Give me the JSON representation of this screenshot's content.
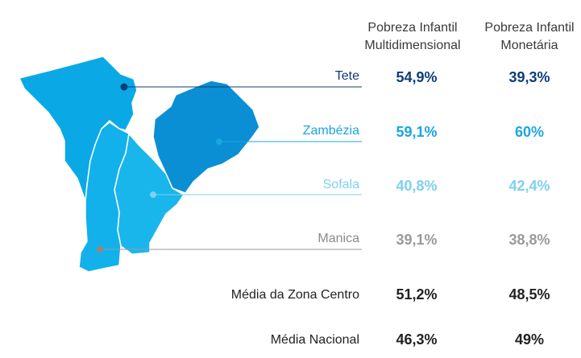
{
  "headers": {
    "multidimensional": [
      "Pobreza Infantil",
      "Multidimensional"
    ],
    "monetary": [
      "Pobreza Infantil",
      "Monetária"
    ]
  },
  "regions": [
    {
      "name": "Tete",
      "multidimensional": "54,9%",
      "monetary": "39,3%",
      "color": "#0d3c7a",
      "fill": "#0aa9e6"
    },
    {
      "name": "Zambézia",
      "multidimensional": "59,1%",
      "monetary": "60%",
      "color": "#1aa6e0",
      "fill": "#0b8fd4"
    },
    {
      "name": "Sofala",
      "multidimensional": "40,8%",
      "monetary": "42,4%",
      "color": "#7fd0f0",
      "fill": "#19b6ec"
    },
    {
      "name": "Manica",
      "multidimensional": "39,1%",
      "monetary": "38,8%",
      "color": "#9a9a9a",
      "fill": "#12b1eb"
    }
  ],
  "averages": [
    {
      "name": "Média da Zona Centro",
      "multidimensional": "51,2%",
      "monetary": "48,5%",
      "color": "#222222"
    },
    {
      "name": "Média Nacional",
      "multidimensional": "46,3%",
      "monetary": "49%",
      "color": "#222222"
    }
  ]
}
